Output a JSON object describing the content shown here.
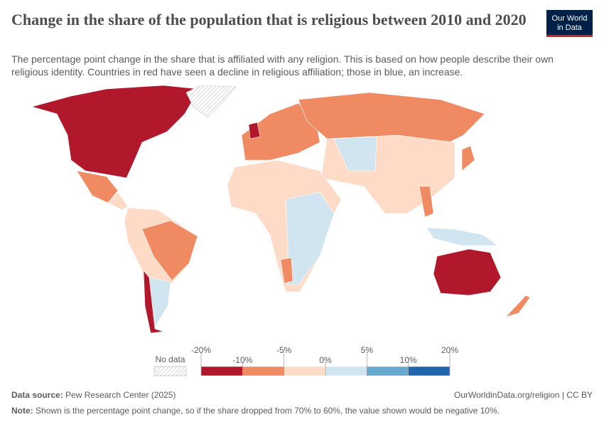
{
  "header": {
    "title": "Change in the share of the population that is religious between 2010 and 2020",
    "subtitle": "The percentage point change in the share that is affiliated with any religion. This is based on how people describe their own religious identity. Countries in red have seen a decline in religious affiliation; those in blue, an increase.",
    "logo": [
      "Our World",
      "in Data"
    ]
  },
  "legend": {
    "no_data": "No data",
    "ticks": [
      {
        "value": -20,
        "label": "-20%"
      },
      {
        "value": -10,
        "label": "-10%"
      },
      {
        "value": -5,
        "label": "-5%"
      },
      {
        "value": 0,
        "label": "0%"
      },
      {
        "value": 5,
        "label": "5%"
      },
      {
        "value": 10,
        "label": "10%"
      },
      {
        "value": 20,
        "label": "20%"
      }
    ],
    "colors": [
      "#b2182b",
      "#ef8a62",
      "#fddbc7",
      "#d1e5f0",
      "#67a9cf",
      "#2166ac"
    ]
  },
  "footer": {
    "source_label": "Data source:",
    "source": "Pew Research Center (2025)",
    "url": "OurWorldinData.org/religion | CC BY",
    "note_label": "Note:",
    "note": "Shown is the percentage point change, so if the share dropped from 70% to 60%, the value shown would be negative 10%."
  }
}
